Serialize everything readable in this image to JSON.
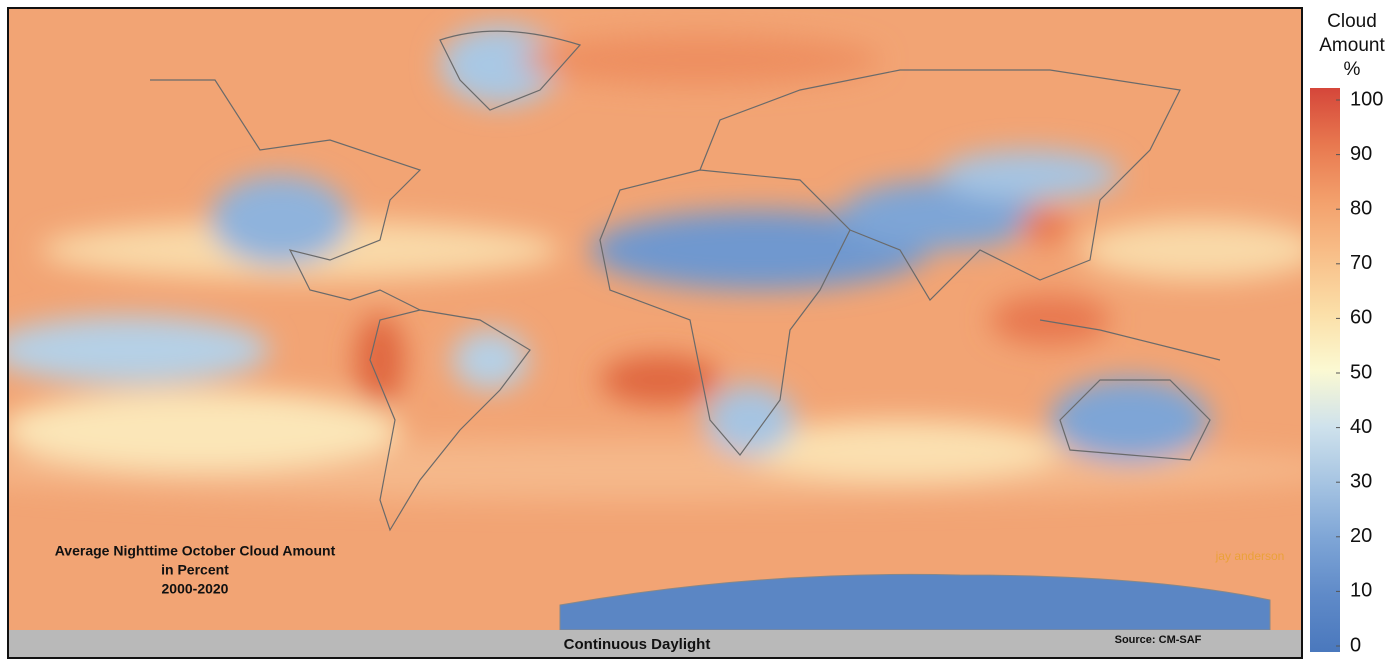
{
  "map": {
    "title": [
      "Average Nighttime October Cloud Amount",
      "in Percent",
      "2000-2020"
    ],
    "footer": "Continuous Daylight",
    "source": "Source: CM-SAF",
    "credit": "jay anderson"
  },
  "legend": {
    "title": [
      "Cloud",
      "Amount",
      "%"
    ],
    "range": [
      0,
      100
    ],
    "ticks": [
      0,
      10,
      20,
      30,
      40,
      50,
      60,
      70,
      80,
      90,
      100
    ],
    "colors": [
      "#4a78bd",
      "#5f8ac8",
      "#7ea5d6",
      "#a6c4e2",
      "#cfe2ec",
      "#fbf9d2",
      "#fbdfa8",
      "#f8c08a",
      "#f3a06c",
      "#e8784f",
      "#d5463a"
    ]
  }
}
